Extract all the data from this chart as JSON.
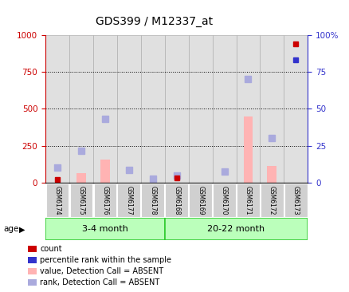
{
  "title": "GDS399 / M12337_at",
  "samples": [
    "GSM6174",
    "GSM6175",
    "GSM6176",
    "GSM6177",
    "GSM6178",
    "GSM6168",
    "GSM6169",
    "GSM6170",
    "GSM6171",
    "GSM6172",
    "GSM6173"
  ],
  "groups": [
    {
      "label": "3-4 month",
      "indices": [
        0,
        1,
        2,
        3,
        4
      ]
    },
    {
      "label": "20-22 month",
      "indices": [
        5,
        6,
        7,
        8,
        9,
        10
      ]
    }
  ],
  "value_absent": [
    null,
    65,
    155,
    null,
    null,
    null,
    null,
    null,
    450,
    110,
    null
  ],
  "rank_absent": [
    100,
    215,
    430,
    85,
    25,
    50,
    null,
    75,
    700,
    300,
    null
  ],
  "count_values": [
    20,
    null,
    null,
    null,
    null,
    30,
    null,
    null,
    null,
    null,
    940
  ],
  "rank_present_values": [
    null,
    null,
    null,
    null,
    null,
    null,
    null,
    null,
    null,
    null,
    83
  ],
  "ylim_left": [
    0,
    1000
  ],
  "ylim_right": [
    0,
    100
  ],
  "yticks_left": [
    0,
    250,
    500,
    750,
    1000
  ],
  "yticks_right": [
    0,
    25,
    50,
    75,
    100
  ],
  "color_count": "#cc0000",
  "color_rank_present": "#3333cc",
  "color_value_absent": "#ffb3b3",
  "color_rank_absent": "#aaaadd",
  "color_group_light": "#bbffbb",
  "color_group_dark": "#33cc33",
  "bar_width": 0.4,
  "marker_size": 6,
  "hgrid_values": [
    250,
    500,
    750
  ],
  "legend_items": [
    {
      "color": "#cc0000",
      "label": "count"
    },
    {
      "color": "#3333cc",
      "label": "percentile rank within the sample"
    },
    {
      "color": "#ffb3b3",
      "label": "value, Detection Call = ABSENT"
    },
    {
      "color": "#aaaadd",
      "label": "rank, Detection Call = ABSENT"
    }
  ]
}
